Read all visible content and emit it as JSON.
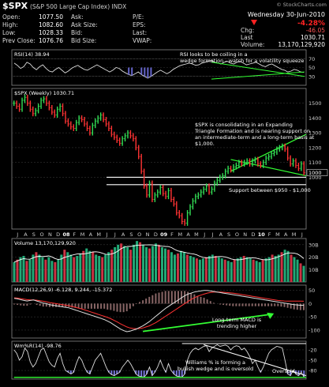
{
  "header": {
    "symbol": "$SPX",
    "name": "(S&P 500 Large Cap Index) INDX",
    "credit": "© StockCharts.com",
    "date": "Wednesday 30-Jun-2010",
    "fields_left": [
      {
        "label": "Open:",
        "value": "1077.50"
      },
      {
        "label": "High:",
        "value": "1082.60"
      },
      {
        "label": "Low:",
        "value": "1028.33"
      },
      {
        "label": "Prev Close:",
        "value": "1076.76"
      }
    ],
    "fields_mid": [
      {
        "label": "Ask:",
        "value": ""
      },
      {
        "label": "Ask Size:",
        "value": ""
      },
      {
        "label": "Bid:",
        "value": ""
      },
      {
        "label": "Bid Size:",
        "value": ""
      }
    ],
    "fields_right": [
      {
        "label": "P/E:",
        "value": ""
      },
      {
        "label": "EPS:",
        "value": ""
      },
      {
        "label": "Last:",
        "value": ""
      },
      {
        "label": "VWAP:",
        "value": ""
      }
    ],
    "stats": [
      {
        "label": "",
        "value": "-4.28%"
      },
      {
        "label": "Chg:",
        "value": "-46.05"
      },
      {
        "label": "Last",
        "value": "1030.71"
      },
      {
        "label": "Volume:",
        "value": "13,170,129,920"
      }
    ],
    "colors": {
      "up": "#00cc44",
      "down": "#ff2222",
      "accent": "#ffcc00"
    }
  },
  "chart_data": [
    {
      "type": "line",
      "panel": "rsi",
      "label": "RSI(14) 38.94",
      "yticks": [
        30,
        50,
        70
      ],
      "ylim": [
        10,
        90
      ],
      "annotation": "RSI looks to be coiling in a wedge formation - watch for a volatility squeeze",
      "values": [
        60,
        55,
        48,
        52,
        62,
        58,
        50,
        45,
        52,
        56,
        48,
        42,
        40,
        46,
        50,
        44,
        38,
        42,
        48,
        52,
        55,
        50,
        46,
        44,
        48,
        52,
        56,
        52,
        48,
        44,
        40,
        44,
        50,
        48,
        42,
        38,
        34,
        32,
        36,
        40,
        34,
        30,
        26,
        30,
        35,
        40,
        44,
        40,
        36,
        40,
        46,
        50,
        54,
        56,
        58,
        60,
        58,
        55,
        56,
        60,
        62,
        64,
        66,
        62,
        60,
        58,
        62,
        64,
        60,
        58,
        62,
        64,
        60,
        56,
        58,
        60,
        62,
        58,
        54,
        52,
        56,
        58,
        54,
        50,
        46,
        44,
        40,
        42,
        46,
        44,
        40,
        38.94
      ]
    },
    {
      "type": "bar",
      "panel": "price",
      "label": "$SPX (Weekly) 1030.71",
      "yticks": [
        1000,
        1100,
        1200,
        1300,
        1400,
        1500
      ],
      "ylim": [
        650,
        1600
      ],
      "support_label": "Support between $950 - $1,000",
      "annotation": "$SPX is consolidating in an Expanding Triangle Formation and is nearing support on an intermediate-term and a long-term basis at $1,000.",
      "xlabels": [
        "J",
        "A",
        "S",
        "O",
        "N",
        "D",
        "08",
        "F",
        "M",
        "A",
        "M",
        "J",
        "J",
        "A",
        "S",
        "O",
        "N",
        "D",
        "09",
        "F",
        "M",
        "A",
        "M",
        "J",
        "J",
        "A",
        "S",
        "O",
        "N",
        "D",
        "10",
        "F",
        "M",
        "A",
        "M",
        "J"
      ],
      "values": [
        1500,
        1480,
        1460,
        1520,
        1540,
        1500,
        1460,
        1430,
        1450,
        1480,
        1520,
        1530,
        1500,
        1470,
        1440,
        1420,
        1460,
        1480,
        1430,
        1380,
        1360,
        1340,
        1330,
        1370,
        1400,
        1390,
        1360,
        1330,
        1300,
        1350,
        1380,
        1400,
        1420,
        1390,
        1360,
        1330,
        1290,
        1270,
        1250,
        1230,
        1260,
        1280,
        1300,
        1280,
        1260,
        1200,
        1140,
        1040,
        940,
        880,
        960,
        850,
        880,
        900,
        930,
        890,
        870,
        910,
        850,
        820,
        760,
        740,
        700,
        690,
        760,
        800,
        840,
        870,
        880,
        900,
        920,
        940,
        900,
        920,
        960,
        980,
        1000,
        1010,
        1040,
        1060,
        1050,
        1070,
        1080,
        1100,
        1090,
        1100,
        1110,
        1090,
        1110,
        1120,
        1090,
        1080,
        1100,
        1130,
        1140,
        1160,
        1170,
        1190,
        1200,
        1210,
        1190,
        1130,
        1090,
        1110,
        1080,
        1060,
        1090,
        1030.71
      ]
    },
    {
      "type": "bar",
      "panel": "volume",
      "label": "Volume 13,170,129,920",
      "yticks": [
        "10B",
        "20B",
        "30B"
      ],
      "ylim": [
        0,
        35
      ],
      "values": [
        16,
        18,
        20,
        21,
        17,
        18,
        22,
        24,
        22,
        20,
        18,
        20,
        17,
        16,
        18,
        22,
        26,
        24,
        22,
        20,
        21,
        23,
        25,
        27,
        25,
        24,
        22,
        21,
        20,
        22,
        24,
        26,
        28,
        30,
        31,
        29,
        28,
        26,
        30,
        33,
        32,
        30,
        28,
        27,
        29,
        31,
        30,
        28,
        27,
        26,
        24,
        22,
        23,
        25,
        24,
        22,
        21,
        20,
        19,
        18,
        19,
        20,
        21,
        22,
        21,
        20,
        19,
        18,
        17,
        16,
        18,
        19,
        20,
        21,
        20,
        19,
        18,
        17,
        16,
        18,
        19,
        20,
        22,
        21,
        22,
        24,
        26,
        25,
        22,
        20,
        18,
        15,
        13
      ]
    },
    {
      "type": "line",
      "panel": "macd",
      "label": "MACD(12,26,9) -6.128, 9.244, -15.372",
      "yticks": [
        -100,
        -50,
        0,
        50
      ],
      "ylim": [
        -130,
        70
      ],
      "annotation": "Long-term MACD is trending higher",
      "series": [
        {
          "name": "MACD",
          "values": [
            20,
            18,
            15,
            12,
            10,
            12,
            14,
            10,
            6,
            2,
            0,
            -4,
            -6,
            -8,
            -10,
            -12,
            -14,
            -16,
            -20,
            -24,
            -28,
            -32,
            -36,
            -40,
            -44,
            -48,
            -52,
            -56,
            -60,
            -66,
            -72,
            -80,
            -88,
            -96,
            -102,
            -106,
            -104,
            -100,
            -96,
            -90,
            -84,
            -76,
            -68,
            -58,
            -48,
            -38,
            -28,
            -18,
            -10,
            -2,
            6,
            14,
            22,
            30,
            36,
            40,
            44,
            46,
            48,
            50,
            50,
            48,
            46,
            44,
            42,
            40,
            38,
            36,
            34,
            32,
            30,
            28,
            26,
            24,
            22,
            20,
            18,
            16,
            14,
            12,
            10,
            8,
            6,
            4,
            2,
            0,
            -2,
            -4,
            -5,
            -6,
            -6.128
          ]
        },
        {
          "name": "Signal",
          "values": [
            22,
            21,
            19,
            17,
            15,
            14,
            14,
            13,
            11,
            9,
            7,
            4,
            2,
            0,
            -2,
            -4,
            -6,
            -8,
            -11,
            -14,
            -17,
            -20,
            -24,
            -28,
            -32,
            -36,
            -40,
            -44,
            -48,
            -52,
            -57,
            -63,
            -69,
            -76,
            -82,
            -88,
            -92,
            -94,
            -95,
            -94,
            -92,
            -88,
            -84,
            -78,
            -72,
            -64,
            -56,
            -48,
            -40,
            -32,
            -24,
            -16,
            -8,
            0,
            8,
            16,
            22,
            28,
            32,
            36,
            40,
            42,
            44,
            44,
            44,
            43,
            42,
            41,
            40,
            38,
            36,
            34,
            32,
            30,
            28,
            26,
            24,
            22,
            20,
            18,
            16,
            14,
            12,
            11,
            10,
            9.8,
            9.6,
            9.5,
            9.4,
            9.3,
            9.244
          ]
        }
      ]
    },
    {
      "type": "line",
      "panel": "williams",
      "label": "Wm%R(14) -98.76",
      "yticks": [
        -20,
        -50,
        -80
      ],
      "ylim": [
        -105,
        5
      ],
      "annotations": [
        "Williams % is forming a bullish wedge and is oversold",
        "Oversold"
      ],
      "values": [
        -20,
        -30,
        -50,
        -40,
        -15,
        -25,
        -55,
        -70,
        -60,
        -40,
        -20,
        -15,
        -35,
        -55,
        -65,
        -70,
        -45,
        -30,
        -60,
        -80,
        -85,
        -90,
        -85,
        -60,
        -40,
        -50,
        -70,
        -85,
        -90,
        -70,
        -50,
        -40,
        -30,
        -50,
        -70,
        -85,
        -92,
        -95,
        -90,
        -85,
        -70,
        -60,
        -50,
        -60,
        -75,
        -90,
        -96,
        -98,
        -99,
        -90,
        -70,
        -95,
        -85,
        -70,
        -50,
        -70,
        -85,
        -60,
        -80,
        -90,
        -96,
        -98,
        -99,
        -90,
        -50,
        -30,
        -20,
        -15,
        -20,
        -15,
        -10,
        -8,
        -25,
        -15,
        -10,
        -5,
        -10,
        -8,
        -6,
        -10,
        -20,
        -12,
        -8,
        -10,
        -20,
        -15,
        -25,
        -40,
        -60,
        -50,
        -70,
        -85,
        -70,
        -50,
        -30,
        -20,
        -15,
        -10,
        -12,
        -15,
        -50,
        -90,
        -95,
        -80,
        -90,
        -95,
        -85,
        -98.76
      ]
    }
  ]
}
